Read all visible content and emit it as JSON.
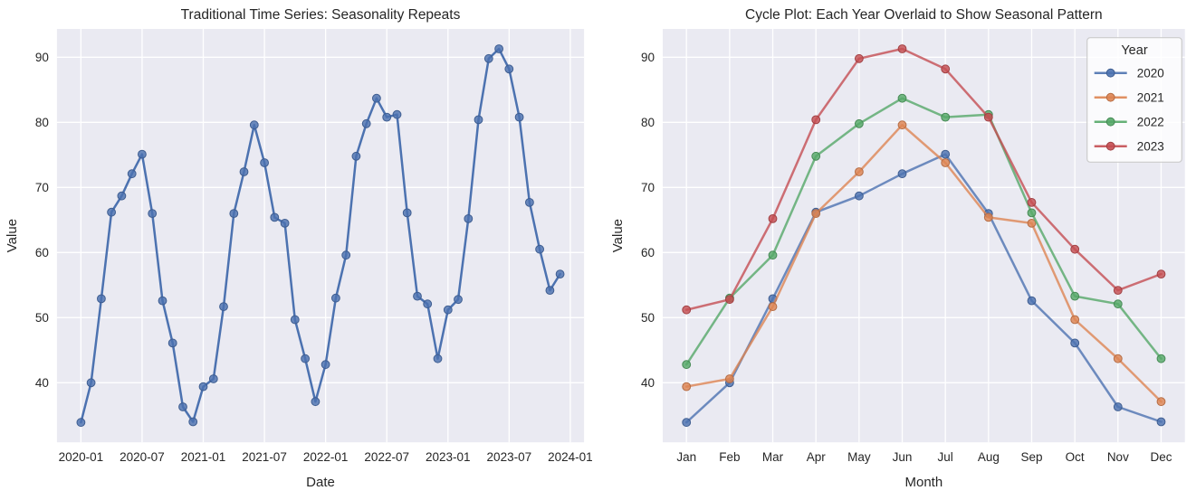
{
  "figure": {
    "background": "#ffffff",
    "axes_background": "#eaeaf2",
    "grid_color": "#ffffff",
    "text_color": "#262626",
    "legend_background": "#ffffff",
    "legend_border_color": "#cccccc"
  },
  "chart_data": [
    {
      "id": "time-series",
      "type": "line",
      "title": "Traditional Time Series: Seasonality Repeats",
      "xlabel": "Date",
      "ylabel": "Value",
      "grid": true,
      "legend": null,
      "ylim": [
        30.85,
        94.35
      ],
      "xlim": [
        -2.35,
        49.35
      ],
      "y_ticks": [
        40,
        50,
        60,
        70,
        80,
        90
      ],
      "x_tick_positions": [
        0,
        6,
        12,
        18,
        24,
        30,
        36,
        42,
        48
      ],
      "x_tick_labels": [
        "2020-01",
        "2020-07",
        "2021-01",
        "2021-07",
        "2022-01",
        "2022-07",
        "2023-01",
        "2023-07",
        "2024-01"
      ],
      "series": [
        {
          "name": "Value",
          "color": "#4C72B0",
          "marker": "circle",
          "line_opacity": 1.0,
          "values": [
            33.9,
            40.0,
            52.9,
            66.2,
            68.7,
            72.1,
            75.1,
            66.0,
            52.6,
            46.1,
            36.3,
            34.0,
            39.4,
            40.6,
            51.7,
            66.0,
            72.4,
            79.6,
            73.8,
            65.4,
            64.5,
            49.7,
            43.7,
            37.1,
            42.8,
            53.0,
            59.6,
            74.8,
            79.8,
            83.7,
            80.8,
            81.2,
            66.1,
            53.3,
            52.1,
            43.7,
            51.2,
            52.8,
            65.2,
            80.4,
            89.8,
            91.3,
            88.2,
            80.8,
            67.7,
            60.5,
            54.2,
            56.7
          ]
        }
      ]
    },
    {
      "id": "cycle-plot",
      "type": "line",
      "title": "Cycle Plot: Each Year Overlaid to Show Seasonal Pattern",
      "xlabel": "Month",
      "ylabel": "Value",
      "grid": true,
      "ylim": [
        30.85,
        94.35
      ],
      "xlim": [
        -0.55,
        11.55
      ],
      "y_ticks": [
        40,
        50,
        60,
        70,
        80,
        90
      ],
      "categories": [
        "Jan",
        "Feb",
        "Mar",
        "Apr",
        "May",
        "Jun",
        "Jul",
        "Aug",
        "Sep",
        "Oct",
        "Nov",
        "Dec"
      ],
      "legend": {
        "title": "Year",
        "position": "upper right"
      },
      "series": [
        {
          "name": "2020",
          "color": "#4C72B0",
          "marker": "circle",
          "line_opacity": 0.8,
          "values": [
            33.9,
            40.0,
            52.9,
            66.2,
            68.7,
            72.1,
            75.1,
            66.0,
            52.6,
            46.1,
            36.3,
            34.0
          ]
        },
        {
          "name": "2021",
          "color": "#DD8452",
          "marker": "circle",
          "line_opacity": 0.8,
          "values": [
            39.4,
            40.6,
            51.7,
            66.0,
            72.4,
            79.6,
            73.8,
            65.4,
            64.5,
            49.7,
            43.7,
            37.1
          ]
        },
        {
          "name": "2022",
          "color": "#55A868",
          "marker": "circle",
          "line_opacity": 0.8,
          "values": [
            42.8,
            53.0,
            59.6,
            74.8,
            79.8,
            83.7,
            80.8,
            81.2,
            66.1,
            53.3,
            52.1,
            43.7
          ]
        },
        {
          "name": "2023",
          "color": "#C44E52",
          "marker": "circle",
          "line_opacity": 0.8,
          "values": [
            51.2,
            52.8,
            65.2,
            80.4,
            89.8,
            91.3,
            88.2,
            80.8,
            67.7,
            60.5,
            54.2,
            56.7
          ]
        }
      ]
    }
  ]
}
